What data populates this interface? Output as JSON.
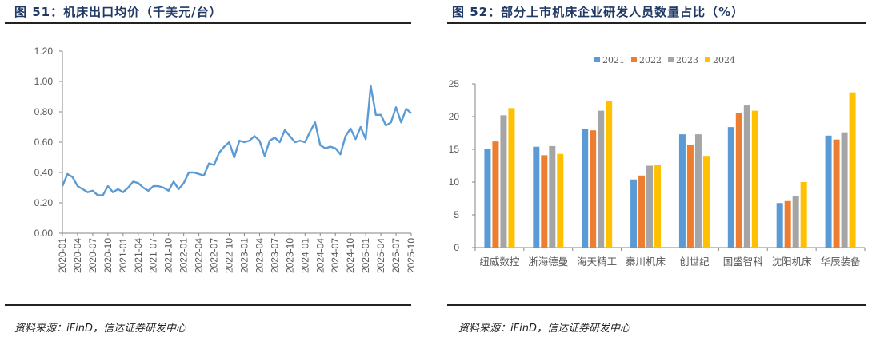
{
  "left": {
    "title": "图  51：机床出口均价（千美元/台）",
    "source": "资料来源：iFinD，信达证券研发中心"
  },
  "right": {
    "title": "图  52：部分上市机床企业研发人员数量占比（%）",
    "source": "资料来源：iFinD，信达证券研发中心"
  },
  "chart_data": [
    {
      "type": "line",
      "title": "机床出口均价（千美元/台）",
      "xlabel": "",
      "ylabel": "",
      "ylim": [
        0,
        1.2
      ],
      "yticks": [
        "0.00",
        "0.20",
        "0.40",
        "0.60",
        "0.80",
        "1.00",
        "1.20"
      ],
      "xtick_labels": [
        "2020-01",
        "2020-04",
        "2020-07",
        "2020-10",
        "2021-01",
        "2021-04",
        "2021-07",
        "2021-10",
        "2022-01",
        "2022-04",
        "2022-07",
        "2022-10",
        "2023-01",
        "2023-04",
        "2023-07",
        "2023-10",
        "2024-01",
        "2024-04",
        "2024-07",
        "2024-10",
        "2025-01",
        "2025-04",
        "2025-07",
        "2025-10"
      ],
      "grid": false,
      "legend": null,
      "color": "#5b9bd5",
      "x": [
        "2020-01",
        "2020-02",
        "2020-03",
        "2020-04",
        "2020-05",
        "2020-06",
        "2020-07",
        "2020-08",
        "2020-09",
        "2020-10",
        "2020-11",
        "2020-12",
        "2021-01",
        "2021-02",
        "2021-03",
        "2021-04",
        "2021-05",
        "2021-06",
        "2021-07",
        "2021-08",
        "2021-09",
        "2021-10",
        "2021-11",
        "2021-12",
        "2022-01",
        "2022-02",
        "2022-03",
        "2022-04",
        "2022-05",
        "2022-06",
        "2022-07",
        "2022-08",
        "2022-09",
        "2022-10",
        "2022-11",
        "2022-12",
        "2023-01",
        "2023-02",
        "2023-03",
        "2023-04",
        "2023-05",
        "2023-06",
        "2023-07",
        "2023-08",
        "2023-09",
        "2023-10",
        "2023-11",
        "2023-12",
        "2024-01",
        "2024-02",
        "2024-03",
        "2024-04",
        "2024-05",
        "2024-06",
        "2024-07",
        "2024-08",
        "2024-09",
        "2024-10",
        "2024-11",
        "2024-12",
        "2025-01",
        "2025-02",
        "2025-03",
        "2025-04",
        "2025-05",
        "2025-06",
        "2025-07",
        "2025-08",
        "2025-09",
        "2025-10"
      ],
      "values": [
        0.31,
        0.39,
        0.37,
        0.31,
        0.29,
        0.27,
        0.28,
        0.25,
        0.25,
        0.31,
        0.27,
        0.29,
        0.27,
        0.3,
        0.34,
        0.33,
        0.3,
        0.28,
        0.31,
        0.31,
        0.3,
        0.28,
        0.34,
        0.29,
        0.33,
        0.4,
        0.4,
        0.39,
        0.38,
        0.46,
        0.45,
        0.53,
        0.57,
        0.6,
        0.5,
        0.61,
        0.6,
        0.61,
        0.64,
        0.61,
        0.51,
        0.61,
        0.63,
        0.6,
        0.68,
        0.64,
        0.6,
        0.61,
        0.6,
        0.67,
        0.73,
        0.58,
        0.56,
        0.57,
        0.56,
        0.52,
        0.64,
        0.69,
        0.62,
        0.7,
        0.62,
        0.97,
        0.78,
        0.78,
        0.71,
        0.73,
        0.83,
        0.73,
        0.82,
        0.79
      ]
    },
    {
      "type": "bar",
      "title": "部分上市机床企业研发人员数量占比（%）",
      "xlabel": "",
      "ylabel": "",
      "ylim": [
        0,
        25
      ],
      "yticks": [
        "0",
        "5",
        "10",
        "15",
        "20",
        "25"
      ],
      "grid": false,
      "legend_position": "top",
      "categories": [
        "纽威数控",
        "浙海德曼",
        "海天精工",
        "秦川机床",
        "创世纪",
        "国盛智科",
        "沈阳机床",
        "华辰装备"
      ],
      "series": [
        {
          "name": "2021",
          "color": "#5b9bd5",
          "values": [
            15.0,
            15.4,
            18.1,
            10.4,
            17.3,
            18.4,
            6.8,
            17.1
          ]
        },
        {
          "name": "2022",
          "color": "#ed7d31",
          "values": [
            16.2,
            14.1,
            17.9,
            11.0,
            15.7,
            20.6,
            7.1,
            16.5
          ]
        },
        {
          "name": "2023",
          "color": "#a5a5a5",
          "values": [
            20.2,
            15.5,
            20.9,
            12.5,
            17.3,
            21.7,
            7.9,
            17.6
          ]
        },
        {
          "name": "2024",
          "color": "#ffc000",
          "values": [
            21.3,
            14.3,
            22.4,
            12.6,
            14.0,
            20.9,
            10.0,
            23.7
          ]
        }
      ]
    }
  ]
}
